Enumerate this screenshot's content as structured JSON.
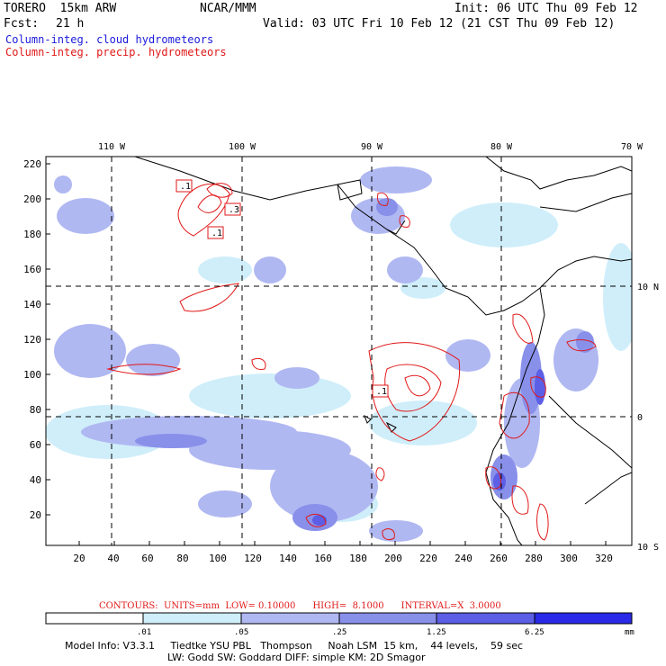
{
  "header": {
    "model": "TORERO  15km ARW",
    "org": "NCAR/MMM",
    "init": "Init: 06 UTC Thu 09 Feb 12",
    "fcst_label": "Fcst:",
    "fcst_value": "21 h",
    "valid": "Valid: 03 UTC Fri 10 Feb 12 (21 CST Thu 09 Feb 12)"
  },
  "legend": {
    "cloud": "Column-integ. cloud hydrometeors",
    "precip": "Column-integ. precip. hydrometeors"
  },
  "colors": {
    "cloud": "#1a1adc",
    "precip": "#e01818",
    "shade_levels": [
      "#ffffff",
      "#cfeefa",
      "#b0b8f2",
      "#8890ea",
      "#5c5ee6",
      "#2a2ae8"
    ]
  },
  "map": {
    "lon_labels": [
      "110 W",
      "100 W",
      "90 W",
      "80 W",
      "70 W"
    ],
    "lat_labels": [
      "10 N",
      "0",
      "10 S"
    ],
    "y_ticks": [
      "220",
      "200",
      "180",
      "160",
      "140",
      "120",
      "100",
      "80",
      "60",
      "40",
      "20"
    ],
    "x_ticks": [
      "20",
      "40",
      "60",
      "80",
      "100",
      "120",
      "140",
      "160",
      "180",
      "200",
      "220",
      "240",
      "260",
      "280",
      "300",
      "320"
    ],
    "contour_labels": [
      ".1",
      ".3",
      ".1",
      ".1"
    ]
  },
  "contours_info": "CONTOURS:  UNITS=mm  LOW= 0.10000      HIGH=  8.1000      INTERVAL=X  3.0000",
  "colorbar": {
    "labels": [
      ".01",
      ".05",
      ".25",
      "1.25",
      "6.25"
    ],
    "unit": "mm"
  },
  "footer": {
    "line1": "Model Info: V3.3.1     Tiedtke YSU PBL   Thompson     Noah LSM  15 km,    44 levels,    59 sec",
    "line2": "LW: Godd SW: Goddard DIFF: simple KM: 2D Smagor"
  }
}
